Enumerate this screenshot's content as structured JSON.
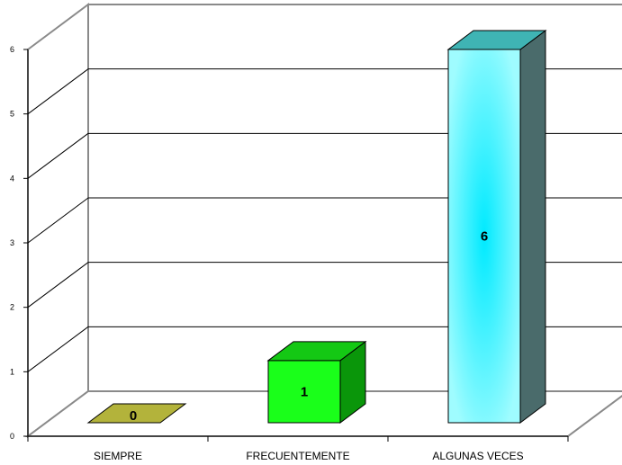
{
  "chart_data": {
    "type": "bar",
    "categories": [
      "SIEMPRE",
      "FRECUENTEMENTE",
      "ALGUNAS VECES"
    ],
    "values": [
      0,
      1,
      6
    ],
    "data_labels": [
      "0",
      "1",
      "6"
    ],
    "ylim": [
      0,
      6
    ],
    "yticks": [
      "0",
      "1",
      "2",
      "3",
      "4",
      "5",
      "6"
    ],
    "grid": true,
    "three_d": true,
    "legend": "none",
    "colors": {
      "SIEMPRE": {
        "front": "#b3b33b",
        "top": "#c8c850",
        "side": "#8a8a2a"
      },
      "FRECUENTEMENTE": {
        "front": "#1aff1a",
        "top": "#14c814",
        "side": "#0a960a"
      },
      "ALGUNAS VECES": {
        "front": "#80ffff",
        "top": "#3fb4b4",
        "side": "#4a6b6b"
      }
    }
  }
}
